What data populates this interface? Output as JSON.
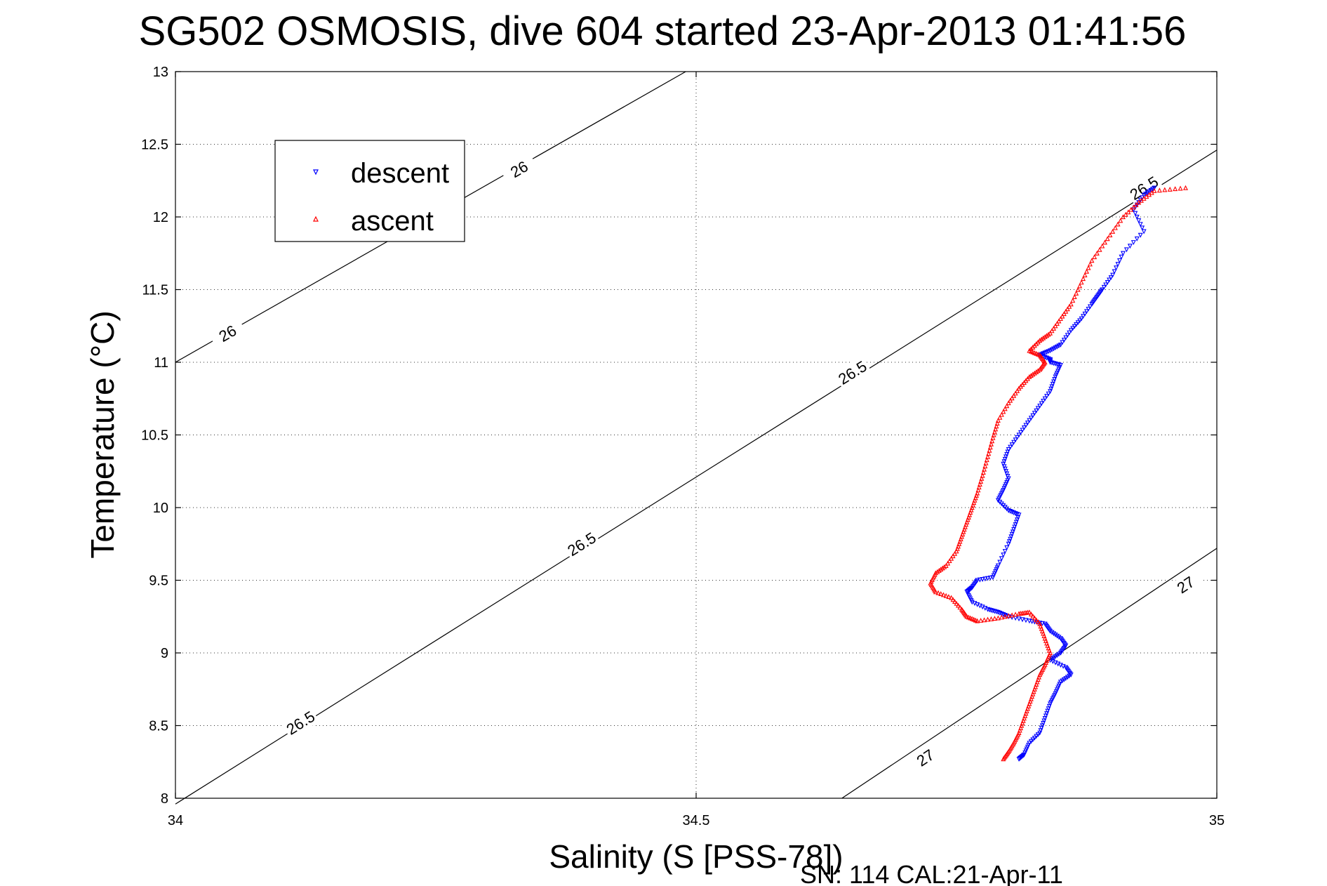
{
  "chart_data": {
    "type": "scatter",
    "title": "SG502 OSMOSIS, dive 604 started 23-Apr-2013 01:41:56",
    "xlabel": "Salinity (S [PSS-78])",
    "ylabel": "Temperature (°C)",
    "footer": "SN: 114  CAL:21-Apr-11",
    "xlim": [
      34,
      35
    ],
    "ylim": [
      8,
      13
    ],
    "x_ticks": [
      "34",
      "34.5",
      "35"
    ],
    "y_ticks": [
      "8",
      "8.5",
      "9",
      "9.5",
      "10",
      "10.5",
      "11",
      "11.5",
      "12",
      "12.5",
      "13"
    ],
    "grid": true,
    "legend_position": "top-left",
    "contours": [
      {
        "value": "26",
        "points": [
          [
            34.0,
            11.0
          ],
          [
            34.49,
            13.0
          ]
        ],
        "labels": [
          [
            34.05,
            11.2
          ],
          [
            34.33,
            12.33
          ]
        ]
      },
      {
        "value": "26.5",
        "points": [
          [
            34.0,
            7.96
          ],
          [
            35.0,
            12.46
          ]
        ],
        "labels": [
          [
            34.12,
            8.52
          ],
          [
            34.39,
            9.75
          ],
          [
            34.65,
            10.93
          ],
          [
            34.93,
            12.2
          ]
        ]
      },
      {
        "value": "27",
        "points": [
          [
            34.64,
            8.0
          ],
          [
            35.0,
            9.72
          ]
        ],
        "labels": [
          [
            34.72,
            8.28
          ],
          [
            34.97,
            9.47
          ]
        ]
      }
    ],
    "series": [
      {
        "name": "descent",
        "color": "#0000ff",
        "marker": "triangle-down",
        "x": [
          34.94,
          34.93,
          34.92,
          34.93,
          34.91,
          34.9,
          34.89,
          34.885,
          34.88,
          34.87,
          34.86,
          34.85,
          34.84,
          34.83,
          34.84,
          34.84,
          34.85,
          34.845,
          34.84,
          34.83,
          34.82,
          34.81,
          34.8,
          34.795,
          34.8,
          34.795,
          34.79,
          34.8,
          34.81,
          34.805,
          34.8,
          34.79,
          34.785,
          34.77,
          34.765,
          34.76,
          34.765,
          34.78,
          34.79,
          34.8,
          34.82,
          34.835,
          34.84,
          34.85,
          34.855,
          34.85,
          34.84,
          34.855,
          34.86,
          34.85,
          34.845,
          34.84,
          34.835,
          34.83,
          34.82,
          34.815,
          34.81
        ],
        "y": [
          12.2,
          12.15,
          12.05,
          11.9,
          11.75,
          11.6,
          11.5,
          11.45,
          11.4,
          11.3,
          11.22,
          11.12,
          11.08,
          11.05,
          11.02,
          11.0,
          10.98,
          10.9,
          10.8,
          10.7,
          10.6,
          10.5,
          10.4,
          10.3,
          10.2,
          10.12,
          10.05,
          9.98,
          9.95,
          9.85,
          9.75,
          9.6,
          9.52,
          9.5,
          9.45,
          9.42,
          9.35,
          9.3,
          9.28,
          9.25,
          9.22,
          9.2,
          9.15,
          9.1,
          9.05,
          9.0,
          8.95,
          8.9,
          8.85,
          8.8,
          8.72,
          8.65,
          8.55,
          8.45,
          8.38,
          8.3,
          8.27
        ]
      },
      {
        "name": "ascent",
        "color": "#ff0000",
        "marker": "triangle-up",
        "x": [
          34.97,
          34.94,
          34.925,
          34.91,
          34.895,
          34.88,
          34.87,
          34.86,
          34.85,
          34.84,
          34.83,
          34.82,
          34.83,
          34.835,
          34.83,
          34.82,
          34.81,
          34.8,
          34.79,
          34.785,
          34.78,
          34.775,
          34.77,
          34.765,
          34.76,
          34.755,
          34.75,
          34.74,
          34.73,
          34.725,
          34.73,
          34.745,
          34.755,
          34.76,
          34.77,
          34.79,
          34.81,
          34.82,
          34.83,
          34.835,
          34.84,
          34.835,
          34.83,
          34.825,
          34.82,
          34.815,
          34.81,
          34.805,
          34.8,
          34.795
        ],
        "y": [
          12.2,
          12.18,
          12.1,
          12.0,
          11.85,
          11.7,
          11.55,
          11.4,
          11.3,
          11.2,
          11.15,
          11.08,
          11.05,
          11.0,
          10.95,
          10.9,
          10.82,
          10.72,
          10.6,
          10.48,
          10.35,
          10.22,
          10.1,
          10.0,
          9.9,
          9.8,
          9.7,
          9.6,
          9.55,
          9.48,
          9.42,
          9.38,
          9.3,
          9.25,
          9.22,
          9.24,
          9.27,
          9.28,
          9.2,
          9.1,
          9.0,
          8.92,
          8.85,
          8.75,
          8.65,
          8.55,
          8.45,
          8.38,
          8.32,
          8.27
        ]
      }
    ]
  }
}
